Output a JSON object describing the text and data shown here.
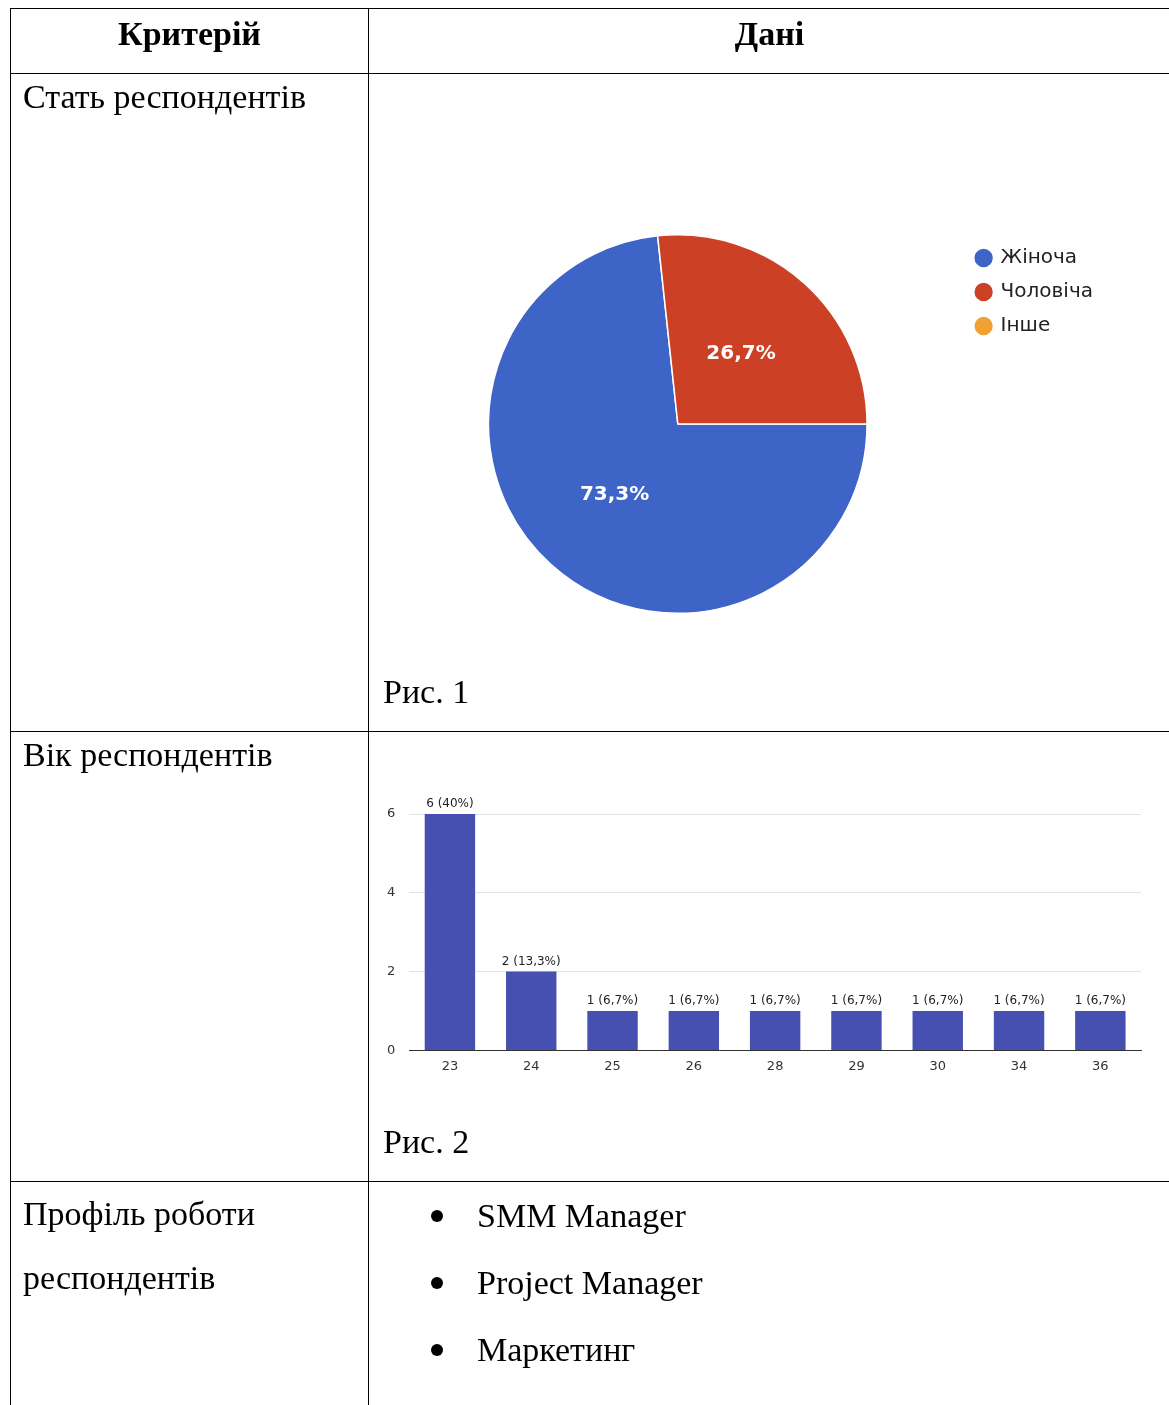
{
  "chart_data": [
    {
      "type": "other",
      "annotations": [
        "Критерій",
        "Дані"
      ]
    },
    {
      "type": "pie",
      "title": "Стать респондентів",
      "categories": [
        "Жіноча",
        "Чоловіча",
        "Інше"
      ],
      "values": [
        73.3,
        26.7,
        0
      ],
      "colors": [
        "#3f64c7",
        "#cc4125",
        "#f1a131"
      ],
      "value_labels": [
        "73,3%",
        "26,7%",
        null
      ],
      "legend": "right",
      "annotations": [
        "Рис. 1"
      ]
    },
    {
      "type": "bar",
      "title": "Вік респондентів",
      "categories": [
        "23",
        "24",
        "25",
        "26",
        "28",
        "29",
        "30",
        "34",
        "36"
      ],
      "values": [
        6,
        2,
        1,
        1,
        1,
        1,
        1,
        1,
        1
      ],
      "color": "#4550b0",
      "value_labels": [
        "6 (40%)",
        "2 (13,3%)",
        "1 (6,7%)",
        "1 (6,7%)",
        "1 (6,7%)",
        "1 (6,7%)",
        "1 (6,7%)",
        "1 (6,7%)",
        "1 (6,7%)"
      ],
      "ylim": [
        0,
        6
      ],
      "yticks": [
        0,
        2,
        4,
        6
      ],
      "grid": "y",
      "annotations": [
        "Рис. 2"
      ]
    },
    {
      "type": "other",
      "title": "Профіль роботи респондентів",
      "annotations": [
        "SMM Manager",
        "Project Manager",
        "Маркетинг"
      ]
    }
  ]
}
